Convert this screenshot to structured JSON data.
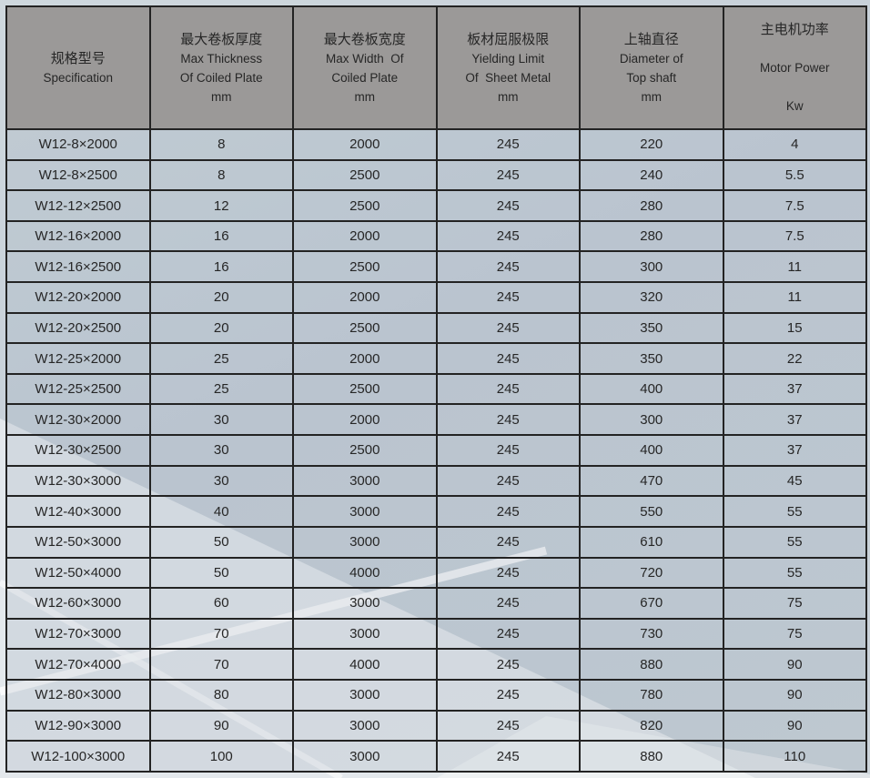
{
  "table": {
    "columns": [
      {
        "id": "specification",
        "lines": [
          "规格型号",
          "Specification"
        ]
      },
      {
        "id": "max-thickness",
        "lines": [
          "最大卷板厚度",
          "Max Thickness",
          "Of Coiled Plate",
          "mm"
        ]
      },
      {
        "id": "max-width",
        "lines": [
          "最大卷板宽度",
          "Max Width  Of",
          "Coiled Plate",
          "mm"
        ]
      },
      {
        "id": "yielding-limit",
        "lines": [
          "板材屈服极限",
          "Yielding Limit",
          "Of  Sheet Metal",
          "mm"
        ]
      },
      {
        "id": "top-shaft-diameter",
        "lines": [
          "上轴直径",
          "Diameter of",
          "Top shaft",
          "mm"
        ]
      },
      {
        "id": "motor-power",
        "lines": [
          "主电机功率",
          "",
          "Motor Power",
          "",
          "Kw"
        ]
      }
    ],
    "rows": [
      [
        "W12-8×2000",
        "8",
        "2000",
        "245",
        "220",
        "4"
      ],
      [
        "W12-8×2500",
        "8",
        "2500",
        "245",
        "240",
        "5.5"
      ],
      [
        "W12-12×2500",
        "12",
        "2500",
        "245",
        "280",
        "7.5"
      ],
      [
        "W12-16×2000",
        "16",
        "2000",
        "245",
        "280",
        "7.5"
      ],
      [
        "W12-16×2500",
        "16",
        "2500",
        "245",
        "300",
        "11"
      ],
      [
        "W12-20×2000",
        "20",
        "2000",
        "245",
        "320",
        "11"
      ],
      [
        "W12-20×2500",
        "20",
        "2500",
        "245",
        "350",
        "15"
      ],
      [
        "W12-25×2000",
        "25",
        "2000",
        "245",
        "350",
        "22"
      ],
      [
        "W12-25×2500",
        "25",
        "2500",
        "245",
        "400",
        "37"
      ],
      [
        "W12-30×2000",
        "30",
        "2000",
        "245",
        "300",
        "37"
      ],
      [
        "W12-30×2500",
        "30",
        "2500",
        "245",
        "400",
        "37"
      ],
      [
        "W12-30×3000",
        "30",
        "3000",
        "245",
        "470",
        "45"
      ],
      [
        "W12-40×3000",
        "40",
        "3000",
        "245",
        "550",
        "55"
      ],
      [
        "W12-50×3000",
        "50",
        "3000",
        "245",
        "610",
        "55"
      ],
      [
        "W12-50×4000",
        "50",
        "4000",
        "245",
        "720",
        "55"
      ],
      [
        "W12-60×3000",
        "60",
        "3000",
        "245",
        "670",
        "75"
      ],
      [
        "W12-70×3000",
        "70",
        "3000",
        "245",
        "730",
        "75"
      ],
      [
        "W12-70×4000",
        "70",
        "4000",
        "245",
        "880",
        "90"
      ],
      [
        "W12-80×3000",
        "80",
        "3000",
        "245",
        "780",
        "90"
      ],
      [
        "W12-90×3000",
        "90",
        "3000",
        "245",
        "820",
        "90"
      ],
      [
        "W12-100×3000",
        "100",
        "3000",
        "245",
        "880",
        "110"
      ]
    ]
  },
  "chart_data": {
    "type": "table",
    "columns": [
      "规格型号 Specification",
      "最大卷板厚度 Max Thickness Of Coiled Plate mm",
      "最大卷板宽度 Max Width Of Coiled Plate mm",
      "板材屈服极限 Yielding Limit Of Sheet Metal mm",
      "上轴直径 Diameter of Top shaft mm",
      "主电机功率 Motor Power Kw"
    ],
    "rows_note": "same 21 rows as table.rows"
  },
  "colors": {
    "header_bg": "#9b9998",
    "row_bg": "#c3ccd5",
    "row_bg_light_band": "#dfe4e4",
    "border": "#232323",
    "text": "#262626",
    "page_bg": "#c9d2da",
    "beam": "#ffffff"
  }
}
